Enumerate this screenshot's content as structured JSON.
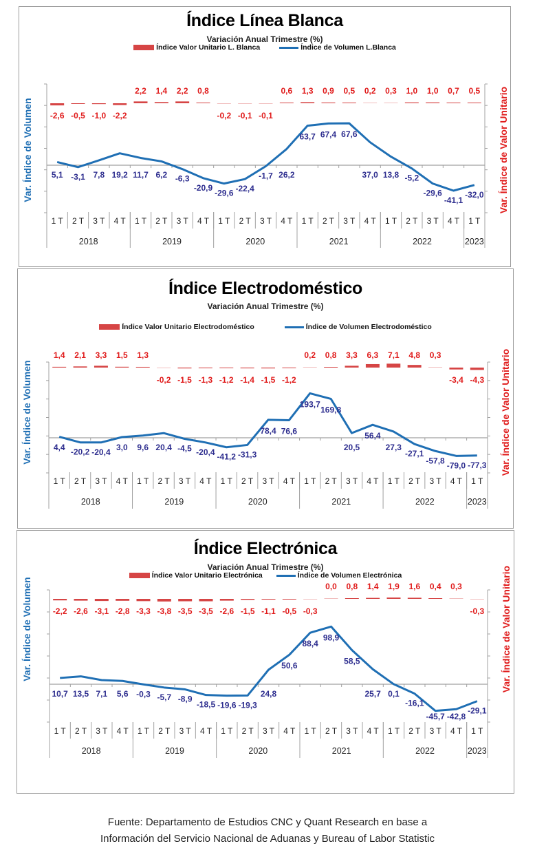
{
  "source_line1": "Fuente: Departamento de Estudios CNC y Quant Research en base a",
  "source_line2": "Información del Servicio Nacional de Aduanas y Bureau of Labor Statistic",
  "colors": {
    "volume_line": "#1f6fb4",
    "unit_bar": "#d64545",
    "unit_label": "#e01b1b",
    "volume_label": "#2e2e8f",
    "axis": "#a0a0a0"
  },
  "chart_data": [
    {
      "type": "line",
      "title": "Índice Línea Blanca",
      "subtitle": "Variación Anual Trimestre  (%)",
      "ylabel_left": "Var. Índice de Volumen",
      "ylabel_right": "Var. Índice de Valor Unitario",
      "legend_position": "top-center",
      "years": [
        "2018",
        "2019",
        "2020",
        "2021",
        "2022",
        "2023"
      ],
      "categories": [
        "1 T",
        "2 T",
        "3 T",
        "4 T",
        "1 T",
        "2 T",
        "3 T",
        "4 T",
        "1 T",
        "2 T",
        "3 T",
        "4 T",
        "1 T",
        "2 T",
        "3 T",
        "4 T",
        "1 T",
        "2 T",
        "3 T",
        "4 T",
        "1 T"
      ],
      "series": [
        {
          "name": "Índice Valor Unitario L. Blanca",
          "type": "bar",
          "axis": "right",
          "values": [
            -2.6,
            -0.5,
            -1.0,
            -2.2,
            2.2,
            1.4,
            2.2,
            0.8,
            -0.2,
            -0.1,
            -0.1,
            0.6,
            1.3,
            0.9,
            0.5,
            0.2,
            0.3,
            1.0,
            1.0,
            0.7,
            0.5
          ],
          "labels": [
            "-2,6",
            "-0,5",
            "-1,0",
            "-2,2",
            "2,2",
            "1,4",
            "2,2",
            "0,8",
            "-0,2",
            "-0,1",
            "-0,1",
            "0,6",
            "1,3",
            "0,9",
            "0,5",
            "0,2",
            "0,3",
            "1,0",
            "1,0",
            "0,7",
            "0,5"
          ]
        },
        {
          "name": "Índice de Volumen L.Blanca",
          "type": "line",
          "axis": "left",
          "values": [
            5.1,
            -3.1,
            7.8,
            19.2,
            11.7,
            6.2,
            -6.3,
            -20.9,
            -29.6,
            -22.4,
            -1.7,
            26.2,
            63.7,
            67.4,
            67.6,
            37.0,
            13.8,
            -5.2,
            -29.6,
            -41.1,
            -32.0
          ],
          "labels": [
            "5,1",
            "-3,1",
            "7,8",
            "19,2",
            "11,7",
            "6,2",
            "-6,3",
            "-20,9",
            "-29,6",
            "-22,4",
            "-1,7",
            "26,2",
            "63,7",
            "67,4",
            "67,6",
            "37,0",
            "13,8",
            "-5,2",
            "-29,6",
            "-41,1",
            "-32,0"
          ]
        }
      ],
      "ylim_left": [
        -60,
        120
      ],
      "grid": false
    },
    {
      "type": "line",
      "title": "Índice Electrodoméstico",
      "subtitle": "Variación Anual Trimestre  (%)",
      "ylabel_left": "Var. Índice de Volumen",
      "ylabel_right": "Var. Índice de Valor Unitario",
      "legend_position": "top-center",
      "years": [
        "2018",
        "2019",
        "2020",
        "2021",
        "2022",
        "2023"
      ],
      "categories": [
        "1 T",
        "2 T",
        "3 T",
        "4 T",
        "1 T",
        "2 T",
        "3 T",
        "4 T",
        "1 T",
        "2 T",
        "3 T",
        "4 T",
        "1 T",
        "2 T",
        "3 T",
        "4 T",
        "1 T",
        "2 T",
        "3 T",
        "4 T",
        "1 T"
      ],
      "series": [
        {
          "name": "Índice Valor Unitario Electrodoméstico",
          "type": "bar",
          "axis": "right",
          "values": [
            1.4,
            2.1,
            3.3,
            1.5,
            1.3,
            -0.2,
            -1.5,
            -1.3,
            -1.2,
            -1.4,
            -1.5,
            -1.2,
            0.2,
            0.8,
            3.3,
            6.3,
            7.1,
            4.8,
            0.3,
            -3.4,
            -4.3
          ],
          "labels": [
            "1,4",
            "2,1",
            "3,3",
            "1,5",
            "1,3",
            "-0,2",
            "-1,5",
            "-1,3",
            "-1,2",
            "-1,4",
            "-1,5",
            "-1,2",
            "0,2",
            "0,8",
            "3,3",
            "6,3",
            "7,1",
            "4,8",
            "0,3",
            "-3,4",
            "-4,3"
          ]
        },
        {
          "name": "Índice de Volumen Electrodoméstico",
          "type": "line",
          "axis": "left",
          "values": [
            4.4,
            -20.2,
            -20.4,
            3.0,
            9.6,
            20.4,
            -4.5,
            -20.4,
            -41.2,
            -31.3,
            78.4,
            76.6,
            193.7,
            169.8,
            20.5,
            56.4,
            27.3,
            -27.1,
            -57.8,
            -79.0,
            -77.3
          ],
          "labels": [
            "4,4",
            "-20,2",
            "-20,4",
            "3,0",
            "9,6",
            "20,4",
            "-4,5",
            "-20,4",
            "-41,2",
            "-31,3",
            "78,4",
            "76,6",
            "193,7",
            "169,8",
            "20,5",
            "56,4",
            "27,3",
            "-27,1",
            "-57,8",
            "-79,0",
            "-77,3"
          ]
        }
      ],
      "ylim_left": [
        -150,
        300
      ],
      "grid": false
    },
    {
      "type": "line",
      "title": "Índice Electrónica",
      "subtitle": "Variación Anual Trimestre  (%)",
      "ylabel_left": "Var. Índice de Volumen",
      "ylabel_right": "Var. Índice de Valor Unitario",
      "legend_position": "top-center",
      "years": [
        "2018",
        "2019",
        "2020",
        "2021",
        "2022",
        "2023"
      ],
      "categories": [
        "1 T",
        "2 T",
        "3 T",
        "4 T",
        "1 T",
        "2 T",
        "3 T",
        "4 T",
        "1 T",
        "2 T",
        "3 T",
        "4 T",
        "1 T",
        "2 T",
        "3 T",
        "4 T",
        "1 T",
        "2 T",
        "3 T",
        "4 T",
        "1 T"
      ],
      "series": [
        {
          "name": "Índice Valor Unitario Electrónica",
          "type": "bar",
          "axis": "right",
          "values": [
            -2.2,
            -2.6,
            -3.1,
            -2.8,
            -3.3,
            -3.8,
            -3.5,
            -3.5,
            -2.6,
            -1.5,
            -1.1,
            -0.5,
            -0.3,
            0.0,
            0.8,
            1.4,
            1.9,
            1.6,
            0.4,
            0.3,
            -0.3
          ],
          "labels": [
            "-2,2",
            "-2,6",
            "-3,1",
            "-2,8",
            "-3,3",
            "-3,8",
            "-3,5",
            "-3,5",
            "-2,6",
            "-1,5",
            "-1,1",
            "-0,5",
            "-0,3",
            "0,0",
            "0,8",
            "1,4",
            "1,9",
            "1,6",
            "0,4",
            "0,3",
            "-0,3"
          ]
        },
        {
          "name": "Índice de Volumen Electrónica",
          "type": "line",
          "axis": "left",
          "values": [
            10.7,
            13.5,
            7.1,
            5.6,
            -0.3,
            -5.7,
            -8.9,
            -18.5,
            -19.6,
            -19.3,
            24.8,
            50.6,
            88.4,
            98.9,
            58.5,
            25.7,
            0.1,
            -16.1,
            -45.7,
            -42.8,
            -29.1
          ],
          "labels": [
            "10,7",
            "13,5",
            "7,1",
            "5,6",
            "-0,3",
            "-5,7",
            "-8,9",
            "-18,5",
            "-19,6",
            "-19,3",
            "24,8",
            "50,6",
            "88,4",
            "98,9",
            "58,5",
            "25,7",
            "0,1",
            "-16,1",
            "-45,7",
            "-42,8",
            "-29,1"
          ]
        }
      ],
      "ylim_left": [
        -60,
        150
      ],
      "grid": false
    }
  ]
}
